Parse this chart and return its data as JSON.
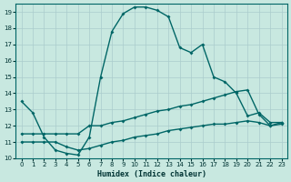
{
  "xlabel": "Humidex (Indice chaleur)",
  "bg_color": "#c8e8e0",
  "line_color": "#006666",
  "grid_color": "#aacccc",
  "xlim": [
    -0.5,
    23.5
  ],
  "ylim": [
    10,
    19.5
  ],
  "yticks": [
    10,
    11,
    12,
    13,
    14,
    15,
    16,
    17,
    18,
    19
  ],
  "xticks": [
    0,
    1,
    2,
    3,
    4,
    5,
    6,
    7,
    8,
    9,
    10,
    11,
    12,
    13,
    14,
    15,
    16,
    17,
    18,
    19,
    20,
    21,
    22,
    23
  ],
  "curve1_x": [
    0,
    1,
    2,
    3,
    4,
    5,
    6,
    7,
    8,
    9,
    10,
    11,
    12,
    13,
    14,
    15,
    16,
    17,
    18,
    19,
    20,
    21,
    22,
    23
  ],
  "curve1_y": [
    13.5,
    12.8,
    11.3,
    10.5,
    10.3,
    10.2,
    11.3,
    15.0,
    17.8,
    18.9,
    19.3,
    19.3,
    19.1,
    18.7,
    16.8,
    16.5,
    17.0,
    15.0,
    14.7,
    14.0,
    12.6,
    12.8,
    12.2,
    12.2
  ],
  "curve2_x": [
    0,
    1,
    2,
    3,
    4,
    5,
    6,
    7,
    8,
    9,
    10,
    11,
    12,
    13,
    14,
    15,
    16,
    17,
    18,
    19,
    20,
    21,
    22,
    23
  ],
  "curve2_y": [
    11.5,
    11.5,
    11.5,
    11.5,
    11.5,
    11.5,
    12.0,
    12.0,
    12.2,
    12.3,
    12.5,
    12.7,
    12.9,
    13.0,
    13.2,
    13.3,
    13.5,
    13.7,
    13.9,
    14.1,
    14.2,
    12.7,
    12.0,
    12.2
  ],
  "curve3_x": [
    0,
    1,
    2,
    3,
    4,
    5,
    6,
    7,
    8,
    9,
    10,
    11,
    12,
    13,
    14,
    15,
    16,
    17,
    18,
    19,
    20,
    21,
    22,
    23
  ],
  "curve3_y": [
    11.0,
    11.0,
    11.0,
    11.0,
    10.7,
    10.5,
    10.6,
    10.8,
    11.0,
    11.1,
    11.3,
    11.4,
    11.5,
    11.7,
    11.8,
    11.9,
    12.0,
    12.1,
    12.1,
    12.2,
    12.3,
    12.2,
    12.0,
    12.1
  ]
}
